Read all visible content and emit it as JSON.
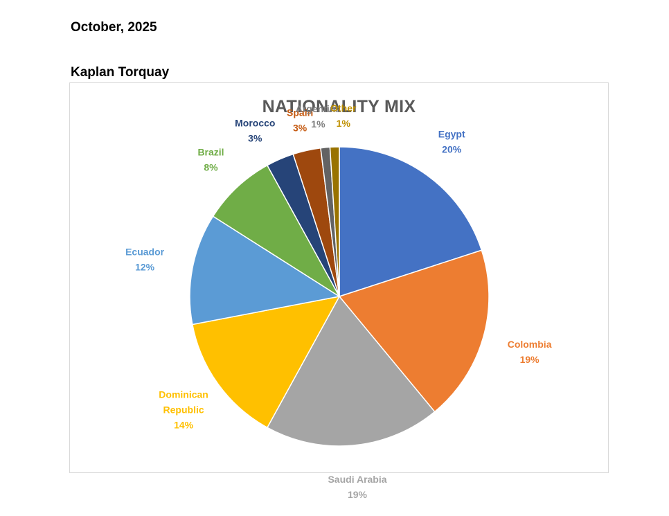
{
  "document": {
    "date": "October, 2025",
    "school": "Kaplan Torquay"
  },
  "chart_data": {
    "type": "pie",
    "title": "NATIONALITY MIX",
    "categories": [
      "Egypt",
      "Colombia",
      "Saudi Arabia",
      "Dominican Republic",
      "Ecuador",
      "Brazil",
      "Morocco",
      "Spain",
      "Argentina",
      "Other"
    ],
    "values": [
      20,
      19,
      19,
      14,
      12,
      8,
      3,
      3,
      1,
      1
    ],
    "value_labels": [
      "20%",
      "19%",
      "19%",
      "14%",
      "12%",
      "8%",
      "3%",
      "3%",
      "1%",
      "1%"
    ],
    "colors": [
      "#4472c4",
      "#ed7d31",
      "#a5a5a5",
      "#ffc000",
      "#5b9bd5",
      "#70ad47",
      "#264478",
      "#9e480e",
      "#636363",
      "#997300"
    ],
    "label_colors": [
      "#4472c4",
      "#ed7d31",
      "#a5a5a5",
      "#ffc000",
      "#5b9bd5",
      "#70ad47",
      "#264478",
      "#c55a11",
      "#7f7f7f",
      "#bf9000"
    ],
    "label_lines": [
      [
        "Egypt"
      ],
      [
        "Colombia"
      ],
      [
        "Saudi Arabia"
      ],
      [
        "Dominican",
        "Republic"
      ],
      [
        "Ecuador"
      ],
      [
        "Brazil"
      ],
      [
        "Morocco"
      ],
      [
        "Spain"
      ],
      [
        "Argentina"
      ],
      [
        "Other"
      ]
    ],
    "legend": "none",
    "unit": "%"
  }
}
